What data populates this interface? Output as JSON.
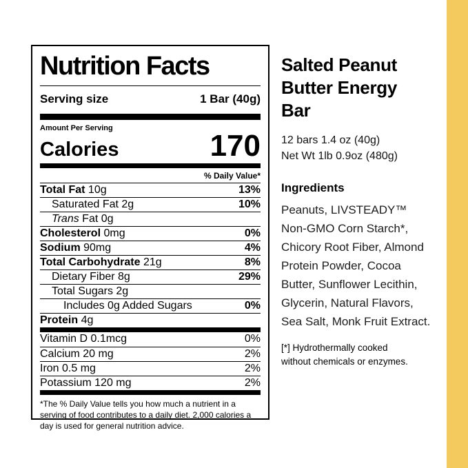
{
  "accent_color": "#F4C95D",
  "label": {
    "title": "Nutrition Facts",
    "serving_size_label": "Serving size",
    "serving_size_value": "1 Bar (40g)",
    "amount_per_serving": "Amount Per Serving",
    "calories_label": "Calories",
    "calories_value": "170",
    "daily_value_header": "% Daily Value*",
    "rows": [
      {
        "bold": "Total Fat",
        "rest": " 10g",
        "pct": "13%"
      },
      {
        "rest": "Saturated Fat 2g",
        "pct": "10%"
      },
      {
        "italic": "Trans",
        "rest": " Fat 0g",
        "pct": ""
      },
      {
        "bold": "Cholesterol",
        "rest": " 0mg",
        "pct": "0%"
      },
      {
        "bold": "Sodium",
        "rest": " 90mg",
        "pct": "4%"
      },
      {
        "bold": "Total Carbohydrate",
        "rest": " 21g",
        "pct": "8%"
      },
      {
        "rest": "Dietary Fiber 8g",
        "pct": "29%"
      },
      {
        "rest": "Total Sugars 2g",
        "pct": ""
      },
      {
        "rest": "Includes 0g Added Sugars",
        "pct": "0%"
      },
      {
        "bold": "Protein",
        "rest": " 4g",
        "pct": ""
      }
    ],
    "vitamins": [
      {
        "text": "Vitamin D 0.1mcg",
        "pct": "0%"
      },
      {
        "text": "Calcium 20 mg",
        "pct": "2%"
      },
      {
        "text": "Iron 0.5 mg",
        "pct": "2%"
      },
      {
        "text": "Potassium 120 mg",
        "pct": "2%"
      }
    ],
    "footnote": "*The % Daily Value tells you how much a nutrient in a serving of food contributes to a daily diet. 2,000 calories a day is used for general nutrition advice."
  },
  "product": {
    "title_lines": [
      "Salted Peanut",
      "Butter Energy",
      "Bar"
    ],
    "pack_lines": [
      "12 bars 1.4 oz (40g)",
      "Net Wt 1lb 0.9oz (480g)"
    ],
    "ingredients_heading": "Ingredients",
    "ingredients_lines": [
      "Peanuts, LIVSTEADY™",
      "Non-GMO Corn Starch*,",
      "Chicory Root Fiber, Almond",
      "Protein Powder, Cocoa",
      "Butter, Sunflower Lecithin,",
      "Glycerin, Natural Flavors,",
      "Sea Salt, Monk Fruit Extract."
    ],
    "footnote_lines": [
      "[*] Hydrothermally cooked",
      "without chemicals or enzymes."
    ]
  }
}
